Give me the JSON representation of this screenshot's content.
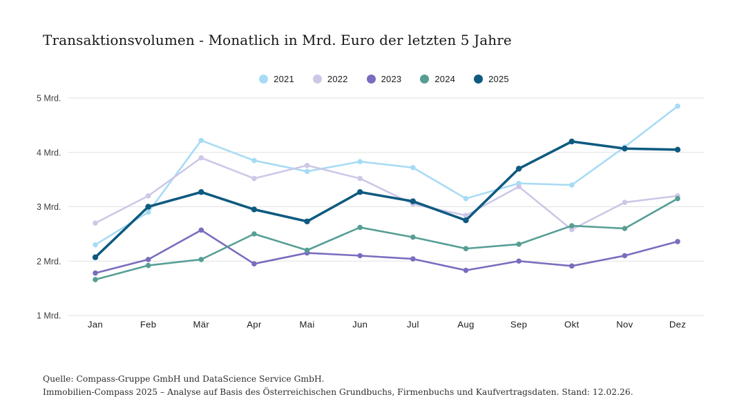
{
  "page": {
    "footer_line1": "Quelle: Compass-Gruppe GmbH und DataScience Service GmbH.",
    "footer_line2": "Immobilien-Compass 2025 – Analyse auf Basis des Österreichischen Grundbuchs, Firmenbuchs und Kaufvertragsdaten. Stand: 12.02.26."
  },
  "chart_data": {
    "type": "line",
    "title": "Transaktionsvolumen - Monatlich in Mrd. Euro der letzten 5 Jahre",
    "unit": "Mrd. Euro",
    "categories": [
      "Jan",
      "Feb",
      "Mär",
      "Apr",
      "Mai",
      "Jun",
      "Jul",
      "Aug",
      "Sep",
      "Okt",
      "Nov",
      "Dez"
    ],
    "y_tick_labels": [
      "1 Mrd.",
      "2 Mrd.",
      "3 Mrd.",
      "4 Mrd.",
      "5 Mrd."
    ],
    "ylim": [
      1,
      5
    ],
    "grid": true,
    "legend_position": "top",
    "series": [
      {
        "name": "2021",
        "color": "#a7dbf5",
        "highlight": false,
        "values": [
          2.3,
          2.9,
          4.22,
          3.85,
          3.65,
          3.83,
          3.72,
          3.15,
          3.43,
          3.4,
          4.1,
          4.85
        ]
      },
      {
        "name": "2022",
        "color": "#cdc7e7",
        "highlight": false,
        "values": [
          2.7,
          3.2,
          3.9,
          3.52,
          3.76,
          3.52,
          3.05,
          2.84,
          3.37,
          2.58,
          3.08,
          3.2
        ]
      },
      {
        "name": "2023",
        "color": "#7a6cbe",
        "highlight": false,
        "values": [
          1.78,
          2.03,
          2.57,
          1.95,
          2.15,
          2.1,
          2.04,
          1.83,
          2.0,
          1.91,
          2.1,
          2.36
        ]
      },
      {
        "name": "2024",
        "color": "#569e94",
        "highlight": false,
        "values": [
          1.66,
          1.92,
          2.03,
          2.5,
          2.2,
          2.62,
          2.44,
          2.23,
          2.31,
          2.65,
          2.6,
          3.15
        ]
      },
      {
        "name": "2025",
        "color": "#0e5a80",
        "highlight": true,
        "values": [
          2.07,
          3.0,
          3.27,
          2.95,
          2.73,
          3.27,
          3.1,
          2.75,
          3.7,
          4.2,
          4.07,
          4.05
        ]
      }
    ]
  }
}
